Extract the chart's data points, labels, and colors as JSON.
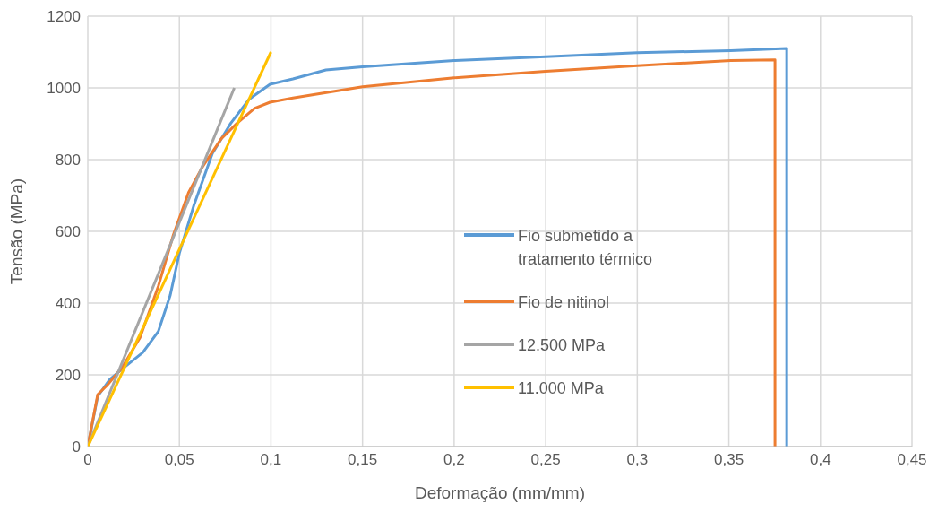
{
  "chart_data": {
    "type": "line",
    "xlabel": "Deformação (mm/mm)",
    "ylabel": "Tensão (MPa)",
    "xlim": [
      0,
      0.45
    ],
    "xticks": [
      {
        "value": 0,
        "label": "0"
      },
      {
        "value": 0.05,
        "label": "0,05"
      },
      {
        "value": 0.1,
        "label": "0,1"
      },
      {
        "value": 0.15,
        "label": "0,15"
      },
      {
        "value": 0.2,
        "label": "0,2"
      },
      {
        "value": 0.25,
        "label": "0,25"
      },
      {
        "value": 0.3,
        "label": "0,3"
      },
      {
        "value": 0.35,
        "label": "0,35"
      },
      {
        "value": 0.4,
        "label": "0,4"
      },
      {
        "value": 0.45,
        "label": "0,45"
      }
    ],
    "ylim": [
      0,
      1200
    ],
    "yticks": [
      0,
      200,
      400,
      600,
      800,
      1000,
      1200
    ],
    "grid": true,
    "legend": "bottom right",
    "marker": "none",
    "line_style": "solid",
    "series": [
      {
        "name": "Fio submetido a tratamento térmico",
        "color": "#5b9bd5",
        "x": [
          0,
          0.0054,
          0.012,
          0.0187,
          0.03,
          0.0385,
          0.045,
          0.05,
          0.058,
          0.068,
          0.078,
          0.088,
          0.0995,
          0.112,
          0.13,
          0.15,
          0.2,
          0.25,
          0.3,
          0.351,
          0.3816,
          0.3816
        ],
        "values": [
          0,
          140,
          187,
          216,
          262,
          321,
          422,
          539,
          674,
          817,
          901,
          968,
          1010,
          1025,
          1050,
          1059,
          1076,
          1087,
          1098,
          1104,
          1110,
          0
        ]
      },
      {
        "name": "Fio de nitinol",
        "color": "#ed7d31",
        "x": [
          0,
          0.0054,
          0.0104,
          0.0187,
          0.0285,
          0.0385,
          0.0467,
          0.055,
          0.063,
          0.073,
          0.0814,
          0.091,
          0.0995,
          0.112,
          0.15,
          0.2,
          0.25,
          0.3,
          0.351,
          0.3752,
          0.3752
        ],
        "values": [
          0,
          145,
          170,
          220,
          304,
          447,
          590,
          708,
          783,
          859,
          901,
          943,
          960,
          972,
          1003,
          1028,
          1046,
          1062,
          1076,
          1078,
          0
        ]
      },
      {
        "name": "12.500 MPa",
        "color": "#a5a5a5",
        "x": [
          0,
          0.08
        ],
        "values": [
          0,
          1000
        ]
      },
      {
        "name": "11.000 MPa",
        "color": "#ffc000",
        "x": [
          0,
          0.1
        ],
        "values": [
          0,
          1100
        ]
      }
    ]
  }
}
